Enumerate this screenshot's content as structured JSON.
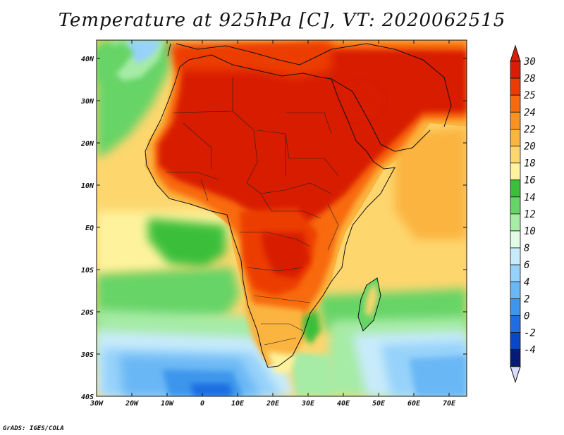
{
  "title": "Temperature at 925hPa [C], VT: 2020062515",
  "credit": "GrADS: IGES/COLA",
  "lat_labels": [
    "40N",
    "30N",
    "20N",
    "10N",
    "EQ",
    "10S",
    "20S",
    "30S",
    "40S"
  ],
  "lon_labels": [
    "30W",
    "20W",
    "10W",
    "0",
    "10E",
    "20E",
    "30E",
    "40E",
    "50E",
    "60E",
    "70E"
  ],
  "colorbar": {
    "labels": [
      "30",
      "28",
      "25",
      "24",
      "22",
      "20",
      "18",
      "16",
      "14",
      "12",
      "10",
      "8",
      "6",
      "4",
      "2",
      "0",
      "-2",
      "-4"
    ],
    "colors": [
      "#d81e05",
      "#ec3c06",
      "#f86a10",
      "#fa9221",
      "#fbb440",
      "#fdd66e",
      "#fef39c",
      "#3bbf3b",
      "#66d466",
      "#a6eba6",
      "#e2fbe6",
      "#c8ebfb",
      "#96d2fa",
      "#6ab7f5",
      "#3c96eb",
      "#1e6ee1",
      "#0a46c8",
      "#061a78"
    ]
  },
  "map": {
    "variable": "Temperature at 925hPa",
    "units": "C",
    "valid_time": "2020062515",
    "region": "Africa and surrounding oceans"
  }
}
